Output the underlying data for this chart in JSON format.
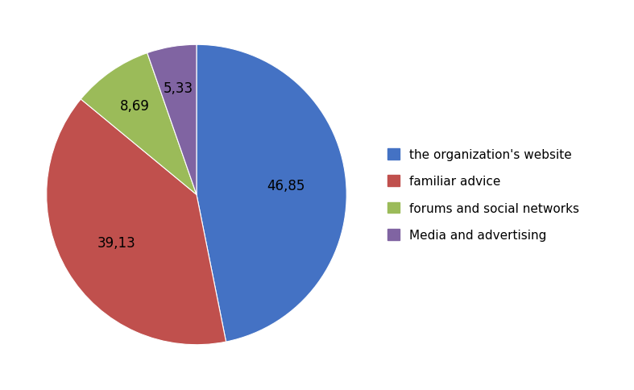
{
  "labels": [
    "the organization's website",
    "familiar advice",
    "forums and social networks",
    "Media and advertising"
  ],
  "values": [
    46.85,
    39.13,
    8.69,
    5.33
  ],
  "colors": [
    "#4472C4",
    "#C0504D",
    "#9BBB59",
    "#8064A2"
  ],
  "autopct_labels": [
    "46,85",
    "39,13",
    "8,69",
    "5,33"
  ],
  "legend_labels": [
    "the organization's website",
    "familiar advice",
    "forums and social networks",
    "Media and advertising"
  ],
  "startangle": 90,
  "figsize": [
    7.87,
    4.85
  ],
  "dpi": 100
}
